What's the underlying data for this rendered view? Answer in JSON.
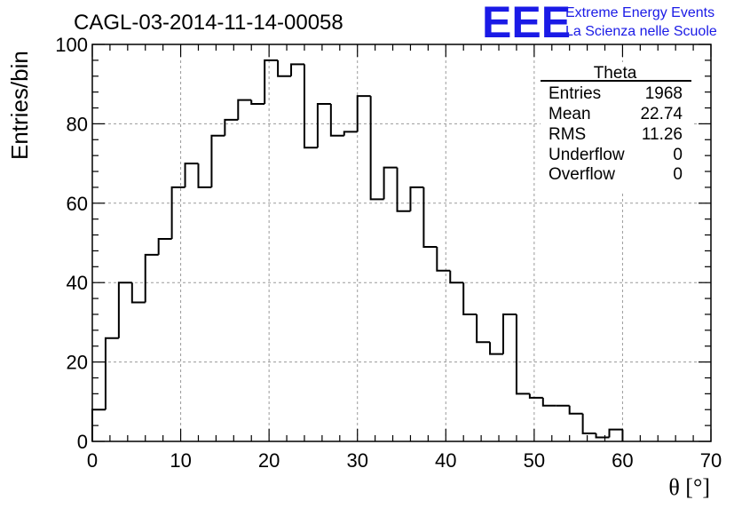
{
  "chart_data": {
    "type": "bar",
    "title": "CAGL-03-2014-11-14-00058",
    "xlabel": "θ [°]",
    "ylabel": "Entries/bin",
    "xlim": [
      0,
      70
    ],
    "ylim": [
      0,
      100
    ],
    "grid": true,
    "bin_width": 1.5,
    "x_bin_edges_start": 0,
    "values": [
      8,
      26,
      40,
      35,
      47,
      51,
      64,
      70,
      64,
      77,
      81,
      86,
      85,
      96,
      92,
      95,
      74,
      85,
      77,
      78,
      87,
      61,
      69,
      58,
      64,
      49,
      43,
      40,
      32,
      25,
      22,
      32,
      12,
      11,
      9,
      9,
      7,
      2,
      1,
      3
    ],
    "x_ticks": [
      0,
      10,
      20,
      30,
      40,
      50,
      60,
      70
    ],
    "y_ticks": [
      0,
      20,
      40,
      60,
      80,
      100
    ]
  },
  "stats_box": {
    "name": "Theta",
    "rows": [
      {
        "label": "Entries",
        "value": "1968"
      },
      {
        "label": "Mean",
        "value": "22.74"
      },
      {
        "label": "RMS",
        "value": "11.26"
      },
      {
        "label": "Underflow",
        "value": "0"
      },
      {
        "label": "Overflow",
        "value": "0"
      }
    ]
  },
  "logo": {
    "mark": "EEE",
    "line1": "Extreme Energy Events",
    "line2": "La Scienza nelle Scuole"
  }
}
